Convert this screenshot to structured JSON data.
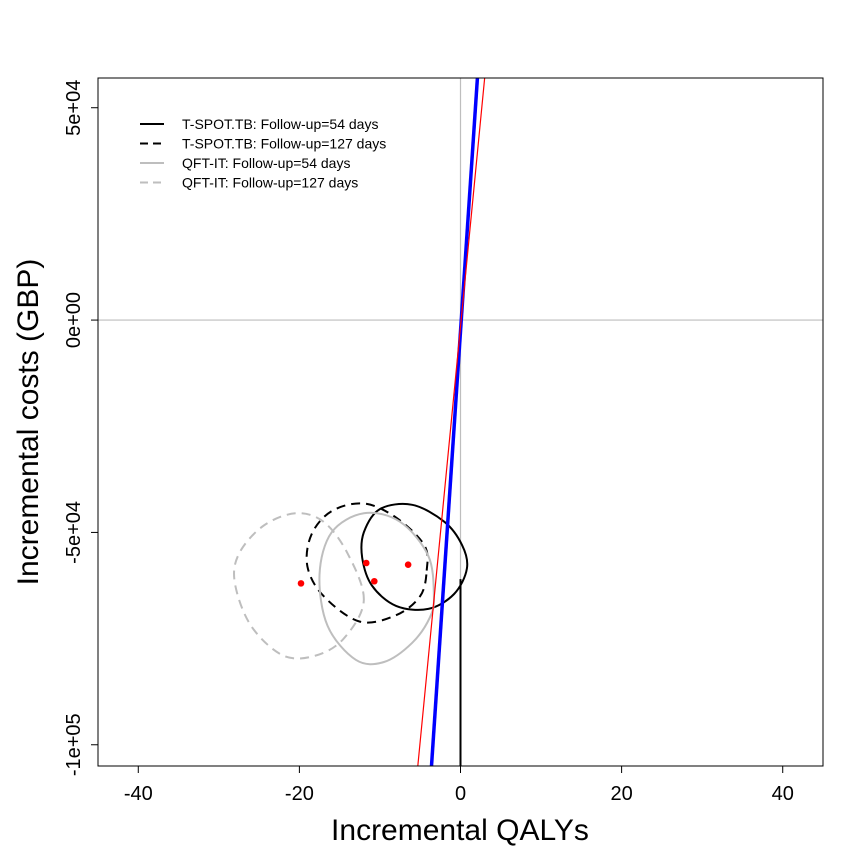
{
  "chart_data": {
    "type": "scatter",
    "xlabel": "Incremental QALYs",
    "ylabel": "Incremental costs (GBP)",
    "xlim": [
      -45,
      45
    ],
    "ylim": [
      -105000,
      57000
    ],
    "x_ticks": [
      {
        "value": -40,
        "label": "-40"
      },
      {
        "value": -20,
        "label": "-20"
      },
      {
        "value": 0,
        "label": "0"
      },
      {
        "value": 20,
        "label": "20"
      },
      {
        "value": 40,
        "label": "40"
      }
    ],
    "y_ticks": [
      {
        "value": 50000,
        "label": "5e+04"
      },
      {
        "value": 0,
        "label": "0e+00"
      },
      {
        "value": -50000,
        "label": "-5e+04"
      },
      {
        "value": -100000,
        "label": "-1e+05"
      }
    ],
    "reference_lines": [
      {
        "orientation": "horizontal",
        "value": 0,
        "color": "#bebebe"
      },
      {
        "orientation": "vertical",
        "value": 0,
        "color": "#bebebe"
      }
    ],
    "segments": [
      {
        "name": "vertical-black",
        "x1": 0,
        "y1": -61000,
        "x2": 0,
        "y2": -105000,
        "color": "#000000",
        "width": 2
      },
      {
        "name": "blue-line",
        "x1": -3.6,
        "y1": -105000,
        "x2": 2.1,
        "y2": 57000,
        "color": "#0000ff",
        "width": 3.5
      },
      {
        "name": "red-line",
        "x1": -5.3,
        "y1": -105000,
        "x2": 3.0,
        "y2": 57000,
        "color": "#ff0000",
        "width": 1.2
      }
    ],
    "ellipses": [
      {
        "name": "T-SPOT.TB: Follow-up=54 days",
        "color": "#000000",
        "dash": false,
        "points": [
          [
            0.8,
            -58500
          ],
          [
            0.2,
            -53000
          ],
          [
            -2.0,
            -47500
          ],
          [
            -6.0,
            -43500
          ],
          [
            -10.0,
            -44500
          ],
          [
            -12.0,
            -50000
          ],
          [
            -12.2,
            -56000
          ],
          [
            -11.0,
            -62500
          ],
          [
            -8.0,
            -67300
          ],
          [
            -4.0,
            -68000
          ],
          [
            -0.8,
            -64500
          ],
          [
            0.8,
            -58500
          ]
        ]
      },
      {
        "name": "T-SPOT.TB: Follow-up=127 days",
        "color": "#000000",
        "dash": true,
        "points": [
          [
            -4.2,
            -59000
          ],
          [
            -4.5,
            -53000
          ],
          [
            -8.0,
            -46500
          ],
          [
            -12.0,
            -43200
          ],
          [
            -16.0,
            -45000
          ],
          [
            -18.5,
            -50500
          ],
          [
            -19.0,
            -58000
          ],
          [
            -17.0,
            -65000
          ],
          [
            -12.5,
            -71000
          ],
          [
            -8.0,
            -69500
          ],
          [
            -5.0,
            -65000
          ],
          [
            -4.2,
            -59000
          ]
        ]
      },
      {
        "name": "QFT-IT: Follow-up=54 days",
        "color": "#bebebe",
        "dash": false,
        "points": [
          [
            -3.3,
            -65000
          ],
          [
            -4.0,
            -55500
          ],
          [
            -7.5,
            -47500
          ],
          [
            -12.0,
            -45500
          ],
          [
            -16.0,
            -50000
          ],
          [
            -17.5,
            -60000
          ],
          [
            -16.5,
            -72000
          ],
          [
            -13.0,
            -80000
          ],
          [
            -9.5,
            -80500
          ],
          [
            -6.0,
            -76000
          ],
          [
            -3.8,
            -70000
          ],
          [
            -3.3,
            -65000
          ]
        ]
      },
      {
        "name": "QFT-IT: Follow-up=127 days",
        "color": "#bebebe",
        "dash": true,
        "points": [
          [
            -12.0,
            -66000
          ],
          [
            -14.0,
            -55000
          ],
          [
            -17.0,
            -47500
          ],
          [
            -20.5,
            -45500
          ],
          [
            -24.5,
            -48500
          ],
          [
            -27.5,
            -55000
          ],
          [
            -28.0,
            -62000
          ],
          [
            -26.0,
            -72000
          ],
          [
            -22.0,
            -79000
          ],
          [
            -18.0,
            -79000
          ],
          [
            -14.5,
            -75000
          ],
          [
            -12.0,
            -66000
          ]
        ]
      }
    ],
    "points": [
      {
        "x": -19.8,
        "y": -62000
      },
      {
        "x": -11.7,
        "y": -57200
      },
      {
        "x": -10.7,
        "y": -61500
      },
      {
        "x": -6.5,
        "y": -57600
      }
    ],
    "point_color": "#ff0000",
    "legend": {
      "placement": "top-left",
      "entries": [
        {
          "label": "T-SPOT.TB: Follow-up=54 days",
          "color": "#000000",
          "dash": false
        },
        {
          "label": "T-SPOT.TB: Follow-up=127 days",
          "color": "#000000",
          "dash": true
        },
        {
          "label": "QFT-IT: Follow-up=54 days",
          "color": "#bebebe",
          "dash": false
        },
        {
          "label": "QFT-IT: Follow-up=127 days",
          "color": "#bebebe",
          "dash": true
        }
      ]
    }
  }
}
